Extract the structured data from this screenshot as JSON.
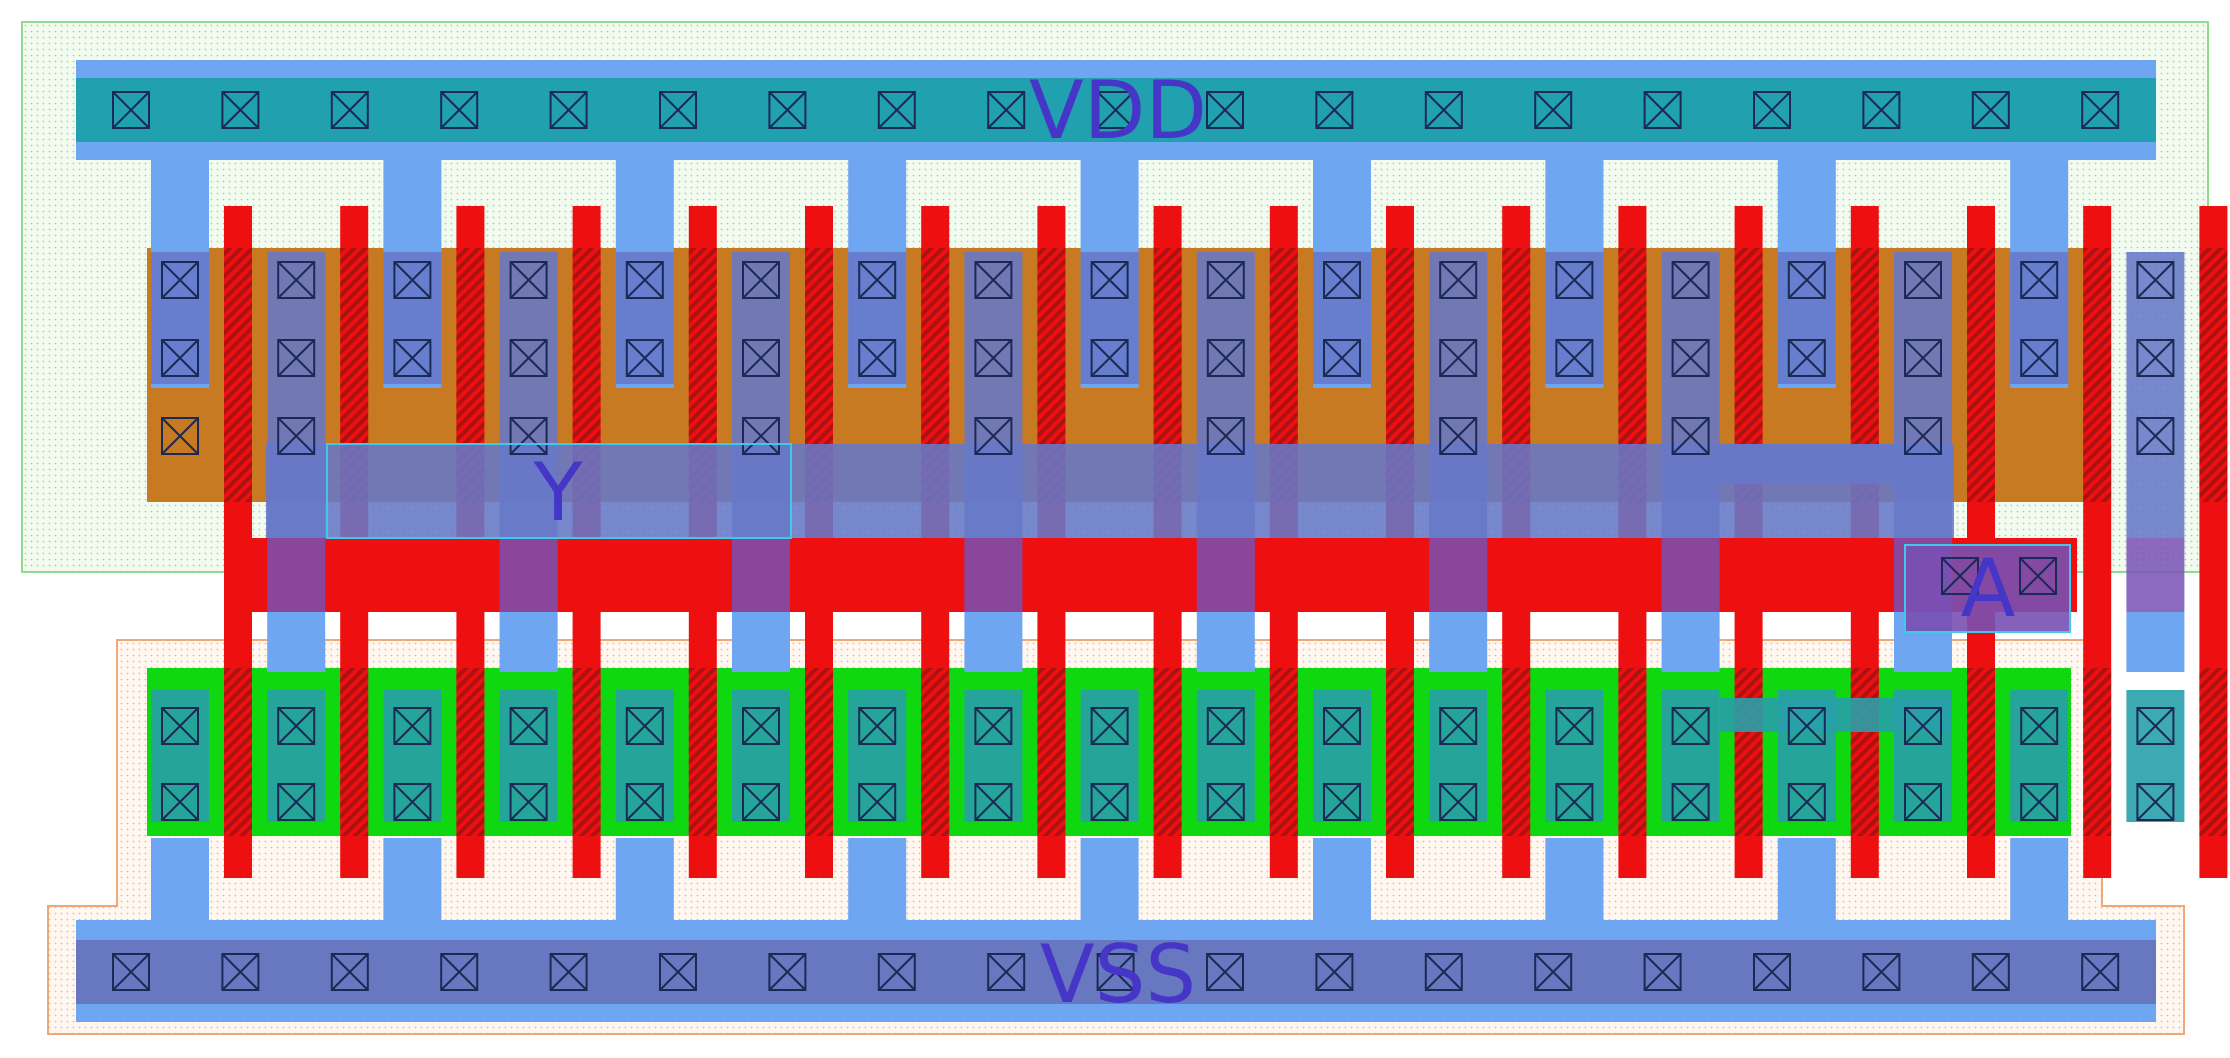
{
  "labels": {
    "vdd": "VDD",
    "vss": "VSS",
    "output": "Y",
    "input": "A"
  },
  "colors": {
    "nwell": "#7fe07f",
    "pimplant": "#e8a46a",
    "pdiff": "#c77a22",
    "ndiff": "#10d810",
    "poly": "#ee1010",
    "metal1": "#6fa6f2",
    "rail_fill": "#21a0b0",
    "label": "#4636c8",
    "pin": "#40c8e8"
  },
  "layout": {
    "finger_count": 18,
    "top_rail_contacts": 19,
    "bottom_rail_contacts": 19
  }
}
